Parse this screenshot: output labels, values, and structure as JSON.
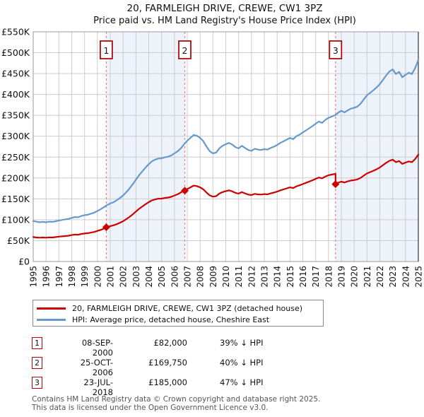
{
  "title": "20, FARMLEIGH DRIVE, CREWE, CW1 3PZ",
  "subtitle": "Price paid vs. HM Land Registry's House Price Index (HPI)",
  "chart_data": {
    "type": "line",
    "x_axis": {
      "min": 1995,
      "max": 2025,
      "years": [
        1995,
        1996,
        1997,
        1998,
        1999,
        2000,
        2001,
        2002,
        2003,
        2004,
        2005,
        2006,
        2007,
        2008,
        2009,
        2010,
        2011,
        2012,
        2013,
        2014,
        2015,
        2016,
        2017,
        2018,
        2019,
        2020,
        2021,
        2022,
        2023,
        2024,
        2025
      ]
    },
    "y_axis": {
      "max_k": 550,
      "ticks": [
        {
          "value_k": 0,
          "label": "£0"
        },
        {
          "value_k": 50,
          "label": "£50K"
        },
        {
          "value_k": 100,
          "label": "£100K"
        },
        {
          "value_k": 150,
          "label": "£150K"
        },
        {
          "value_k": 200,
          "label": "£200K"
        },
        {
          "value_k": 250,
          "label": "£250K"
        },
        {
          "value_k": 300,
          "label": "£300K"
        },
        {
          "value_k": 350,
          "label": "£350K"
        },
        {
          "value_k": 400,
          "label": "£400K"
        },
        {
          "value_k": 450,
          "label": "£450K"
        },
        {
          "value_k": 500,
          "label": "£500K"
        },
        {
          "value_k": 550,
          "label": "£550K"
        }
      ]
    },
    "series": [
      {
        "name": "HPI: Average price, detached house, Cheshire East",
        "data_name": "hpi-line",
        "color": "#6699cc",
        "points": [
          [
            1995,
            97
          ],
          [
            1995.25,
            95.5
          ],
          [
            1995.5,
            94
          ],
          [
            1995.75,
            95
          ],
          [
            1996,
            94
          ],
          [
            1996.25,
            95.5
          ],
          [
            1996.5,
            95
          ],
          [
            1996.75,
            96.5
          ],
          [
            1997,
            98
          ],
          [
            1997.25,
            99.5
          ],
          [
            1997.5,
            101
          ],
          [
            1997.75,
            102
          ],
          [
            1998,
            104.5
          ],
          [
            1998.25,
            106.5
          ],
          [
            1998.5,
            106
          ],
          [
            1998.75,
            109
          ],
          [
            1999,
            111
          ],
          [
            1999.25,
            112
          ],
          [
            1999.5,
            114.5
          ],
          [
            1999.75,
            117
          ],
          [
            2000,
            121
          ],
          [
            2000.25,
            125
          ],
          [
            2000.5,
            130
          ],
          [
            2000.69,
            134
          ],
          [
            2001,
            139
          ],
          [
            2001.25,
            142
          ],
          [
            2001.5,
            146.5
          ],
          [
            2001.75,
            152
          ],
          [
            2002,
            158
          ],
          [
            2002.25,
            166
          ],
          [
            2002.5,
            175
          ],
          [
            2002.75,
            185
          ],
          [
            2003,
            196
          ],
          [
            2003.25,
            207
          ],
          [
            2003.5,
            216
          ],
          [
            2003.75,
            225
          ],
          [
            2004,
            233
          ],
          [
            2004.25,
            240
          ],
          [
            2004.5,
            244
          ],
          [
            2004.75,
            246.5
          ],
          [
            2005,
            247
          ],
          [
            2005.25,
            249.5
          ],
          [
            2005.5,
            251
          ],
          [
            2005.75,
            254
          ],
          [
            2006,
            259
          ],
          [
            2006.25,
            264
          ],
          [
            2006.5,
            271
          ],
          [
            2006.81,
            283
          ],
          [
            2007,
            289
          ],
          [
            2007.25,
            296
          ],
          [
            2007.5,
            303
          ],
          [
            2007.75,
            301
          ],
          [
            2008,
            296
          ],
          [
            2008.25,
            288
          ],
          [
            2008.5,
            275
          ],
          [
            2008.75,
            264
          ],
          [
            2009,
            259
          ],
          [
            2009.25,
            261
          ],
          [
            2009.5,
            271
          ],
          [
            2009.75,
            277
          ],
          [
            2010,
            281
          ],
          [
            2010.25,
            284
          ],
          [
            2010.5,
            280
          ],
          [
            2010.75,
            274
          ],
          [
            2011,
            271
          ],
          [
            2011.25,
            277
          ],
          [
            2011.5,
            272
          ],
          [
            2011.75,
            267
          ],
          [
            2012,
            265
          ],
          [
            2012.25,
            270
          ],
          [
            2012.5,
            268
          ],
          [
            2012.75,
            267
          ],
          [
            2013,
            269
          ],
          [
            2013.25,
            268
          ],
          [
            2013.5,
            272
          ],
          [
            2013.75,
            275
          ],
          [
            2014,
            279
          ],
          [
            2014.25,
            284
          ],
          [
            2014.5,
            288
          ],
          [
            2014.75,
            292
          ],
          [
            2015,
            296
          ],
          [
            2015.25,
            293
          ],
          [
            2015.5,
            300
          ],
          [
            2015.75,
            304
          ],
          [
            2016,
            309
          ],
          [
            2016.25,
            314
          ],
          [
            2016.5,
            319
          ],
          [
            2016.75,
            324
          ],
          [
            2017,
            330
          ],
          [
            2017.25,
            335
          ],
          [
            2017.5,
            332
          ],
          [
            2017.75,
            339
          ],
          [
            2018,
            344
          ],
          [
            2018.25,
            347
          ],
          [
            2018.55,
            351
          ],
          [
            2018.75,
            356
          ],
          [
            2019,
            361
          ],
          [
            2019.25,
            357
          ],
          [
            2019.5,
            362
          ],
          [
            2019.75,
            366
          ],
          [
            2020,
            368
          ],
          [
            2020.25,
            371
          ],
          [
            2020.5,
            378
          ],
          [
            2020.75,
            388
          ],
          [
            2021,
            398
          ],
          [
            2021.25,
            404
          ],
          [
            2021.5,
            410
          ],
          [
            2021.75,
            417
          ],
          [
            2022,
            425
          ],
          [
            2022.25,
            435
          ],
          [
            2022.5,
            446
          ],
          [
            2022.75,
            455
          ],
          [
            2023,
            460
          ],
          [
            2023.25,
            449
          ],
          [
            2023.5,
            454
          ],
          [
            2023.75,
            441
          ],
          [
            2024,
            447
          ],
          [
            2024.25,
            452
          ],
          [
            2024.5,
            449
          ],
          [
            2024.75,
            463
          ],
          [
            2025,
            483
          ]
        ]
      },
      {
        "name": "20, FARMLEIGH DRIVE, CREWE, CW1 3PZ (detached house)",
        "data_name": "property-price-line",
        "color": "#cc0000",
        "points": [
          [
            1995,
            58.5
          ],
          [
            1995.25,
            57.5
          ],
          [
            1995.5,
            57
          ],
          [
            1995.75,
            57.5
          ],
          [
            1996,
            57
          ],
          [
            1996.25,
            57.8
          ],
          [
            1996.5,
            57.5
          ],
          [
            1996.75,
            58.5
          ],
          [
            1997,
            59.5
          ],
          [
            1997.25,
            60.3
          ],
          [
            1997.5,
            61
          ],
          [
            1997.75,
            61.8
          ],
          [
            1998,
            63.3
          ],
          [
            1998.25,
            64.5
          ],
          [
            1998.5,
            64
          ],
          [
            1998.75,
            66
          ],
          [
            1999,
            67
          ],
          [
            1999.25,
            67.8
          ],
          [
            1999.5,
            69.3
          ],
          [
            1999.75,
            70.8
          ],
          [
            2000,
            73.2
          ],
          [
            2000.25,
            75.6
          ],
          [
            2000.5,
            78.7
          ],
          [
            2000.69,
            82
          ],
          [
            2001,
            84.8
          ],
          [
            2001.25,
            86.6
          ],
          [
            2001.5,
            89.4
          ],
          [
            2001.75,
            92.7
          ],
          [
            2002,
            96.4
          ],
          [
            2002.25,
            101.3
          ],
          [
            2002.5,
            106.8
          ],
          [
            2002.75,
            112.9
          ],
          [
            2003,
            119.6
          ],
          [
            2003.25,
            126.3
          ],
          [
            2003.5,
            131.8
          ],
          [
            2003.75,
            137.3
          ],
          [
            2004,
            142.1
          ],
          [
            2004.25,
            146.4
          ],
          [
            2004.5,
            148.8
          ],
          [
            2004.75,
            150.4
          ],
          [
            2005,
            150.7
          ],
          [
            2005.25,
            152.2
          ],
          [
            2005.5,
            153.1
          ],
          [
            2005.75,
            154.9
          ],
          [
            2006,
            158
          ],
          [
            2006.25,
            161
          ],
          [
            2006.5,
            165.3
          ],
          [
            2006.81,
            169.75
          ],
          [
            2007,
            173.4
          ],
          [
            2007.25,
            177.6
          ],
          [
            2007.5,
            181.8
          ],
          [
            2007.75,
            180.6
          ],
          [
            2008,
            177.6
          ],
          [
            2008.25,
            172.8
          ],
          [
            2008.5,
            165
          ],
          [
            2008.75,
            158.4
          ],
          [
            2009,
            155.4
          ],
          [
            2009.25,
            156.6
          ],
          [
            2009.5,
            162.6
          ],
          [
            2009.75,
            166.2
          ],
          [
            2010,
            168.6
          ],
          [
            2010.25,
            170.4
          ],
          [
            2010.5,
            168
          ],
          [
            2010.75,
            164.4
          ],
          [
            2011,
            162.6
          ],
          [
            2011.25,
            166.2
          ],
          [
            2011.5,
            163.2
          ],
          [
            2011.75,
            160.2
          ],
          [
            2012,
            159
          ],
          [
            2012.25,
            162
          ],
          [
            2012.5,
            160.8
          ],
          [
            2012.75,
            160.2
          ],
          [
            2013,
            161.4
          ],
          [
            2013.25,
            160.8
          ],
          [
            2013.5,
            163.2
          ],
          [
            2013.75,
            165
          ],
          [
            2014,
            167.4
          ],
          [
            2014.25,
            170.4
          ],
          [
            2014.5,
            172.8
          ],
          [
            2014.75,
            175.2
          ],
          [
            2015,
            177.6
          ],
          [
            2015.25,
            175.8
          ],
          [
            2015.5,
            180
          ],
          [
            2015.75,
            182.4
          ],
          [
            2016,
            185.4
          ],
          [
            2016.25,
            188.4
          ],
          [
            2016.5,
            191.4
          ],
          [
            2016.75,
            194.4
          ],
          [
            2017,
            198
          ],
          [
            2017.25,
            201
          ],
          [
            2017.5,
            199.2
          ],
          [
            2017.75,
            203.4
          ],
          [
            2018,
            206.4
          ],
          [
            2018.25,
            208.2
          ],
          [
            2018.55,
            210
          ],
          [
            2018.55,
            185
          ],
          [
            2018.75,
            188.7
          ],
          [
            2019,
            191.3
          ],
          [
            2019.25,
            189.2
          ],
          [
            2019.5,
            191.9
          ],
          [
            2019.75,
            194
          ],
          [
            2020,
            195
          ],
          [
            2020.25,
            196.6
          ],
          [
            2020.5,
            200.3
          ],
          [
            2020.75,
            205.6
          ],
          [
            2021,
            210.9
          ],
          [
            2021.25,
            214.1
          ],
          [
            2021.5,
            217.3
          ],
          [
            2021.75,
            221
          ],
          [
            2022,
            225.3
          ],
          [
            2022.25,
            230.6
          ],
          [
            2022.5,
            236.4
          ],
          [
            2022.75,
            241.2
          ],
          [
            2023,
            243.8
          ],
          [
            2023.25,
            238
          ],
          [
            2023.5,
            240.6
          ],
          [
            2023.75,
            233.7
          ],
          [
            2024,
            236.9
          ],
          [
            2024.25,
            239.6
          ],
          [
            2024.5,
            238
          ],
          [
            2024.75,
            245.4
          ],
          [
            2025,
            256
          ]
        ]
      }
    ],
    "sales": [
      {
        "n": "1",
        "x": 2000.69,
        "value_k": 82,
        "date": "08-SEP-2000",
        "price": "£82,000",
        "vs_hpi": "39% ↓ HPI"
      },
      {
        "n": "2",
        "x": 2006.81,
        "value_k": 169.75,
        "date": "25-OCT-2006",
        "price": "£169,750",
        "vs_hpi": "40% ↓ HPI"
      },
      {
        "n": "3",
        "x": 2018.55,
        "value_k": 185,
        "date": "23-JUL-2018",
        "price": "£185,000",
        "vs_hpi": "47% ↓ HPI"
      }
    ],
    "shaded_regions": [
      [
        2000.69,
        2006.81
      ],
      [
        2018.55,
        2025
      ]
    ],
    "colors": {
      "red": "#cc0000",
      "blue": "#6699cc",
      "shade": "#eef2fa",
      "grid": "#cccccc",
      "border": "#999999",
      "right_border": "#444444",
      "dash": "#f08080",
      "marker_box_border": "#aa0000"
    }
  },
  "legend": {
    "items": [
      {
        "label": "20, FARMLEIGH DRIVE, CREWE, CW1 3PZ (detached house)",
        "color": "#cc0000"
      },
      {
        "label": "HPI: Average price, detached house, Cheshire East",
        "color": "#6699cc"
      }
    ]
  },
  "table": {
    "rows": [
      {
        "n": "1",
        "date": "08-SEP-2000",
        "price": "£82,000",
        "vs_hpi": "39% ↓ HPI"
      },
      {
        "n": "2",
        "date": "25-OCT-2006",
        "price": "£169,750",
        "vs_hpi": "40% ↓ HPI"
      },
      {
        "n": "3",
        "date": "23-JUL-2018",
        "price": "£185,000",
        "vs_hpi": "47% ↓ HPI"
      }
    ]
  },
  "footer": {
    "line1": "Contains HM Land Registry data © Crown copyright and database right 2025.",
    "line2": "This data is licensed under the Open Government Licence v3.0."
  }
}
